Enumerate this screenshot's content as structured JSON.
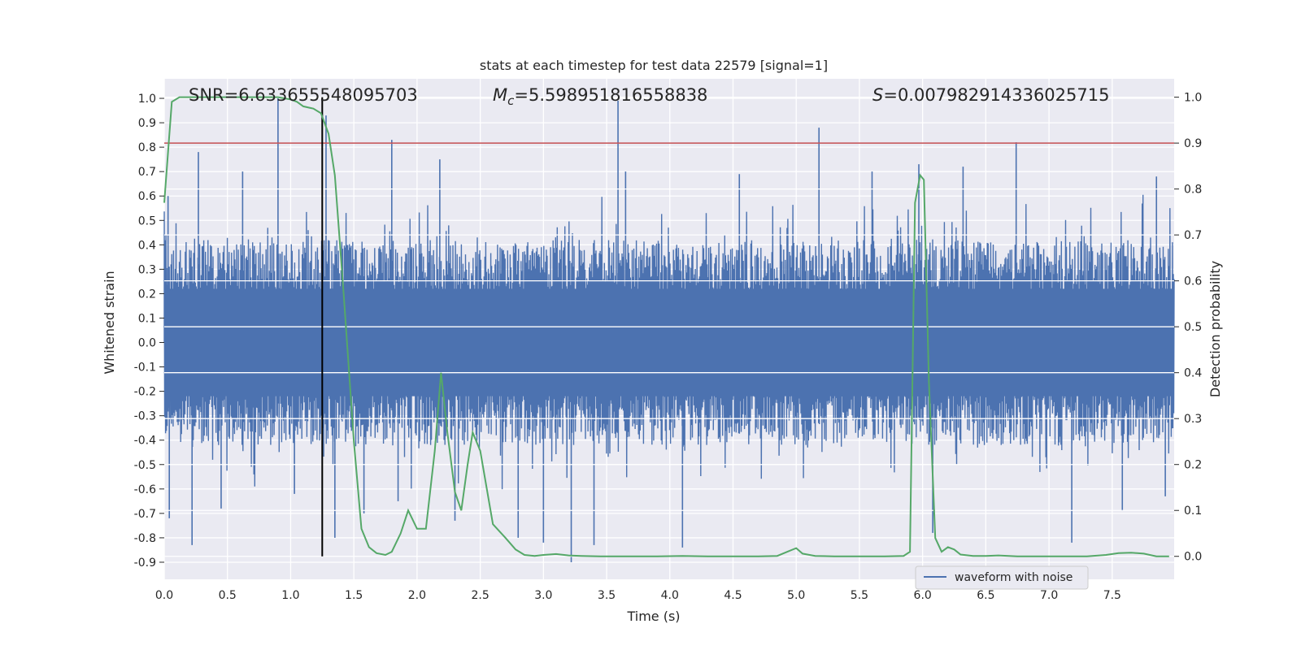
{
  "chart_data": {
    "type": "line",
    "title": "stats at each timestep for test data 22579 [signal=1]",
    "xlabel": "Time (s)",
    "ylabel": "Whitened strain",
    "y2label": "Detection probability",
    "xlim": [
      0.0,
      7.99
    ],
    "ylim": [
      -0.97,
      1.08
    ],
    "y2lim": [
      -0.05,
      1.04
    ],
    "xticks": [
      "0.0",
      "0.5",
      "1.0",
      "1.5",
      "2.0",
      "2.5",
      "3.0",
      "3.5",
      "4.0",
      "4.5",
      "5.0",
      "5.5",
      "6.0",
      "6.5",
      "7.0",
      "7.5"
    ],
    "yticks": [
      "1.0",
      "0.9",
      "0.8",
      "0.7",
      "0.6",
      "0.5",
      "0.4",
      "0.3",
      "0.2",
      "0.1",
      "0.0",
      "-0.1",
      "-0.2",
      "-0.3",
      "-0.4",
      "-0.5",
      "-0.6",
      "-0.7",
      "-0.8",
      "-0.9"
    ],
    "y2ticks": [
      "1.0",
      "0.9",
      "0.8",
      "0.7",
      "0.6",
      "0.5",
      "0.4",
      "0.3",
      "0.2",
      "0.1",
      "0.0"
    ],
    "annotations": {
      "snr": "SNR=6.633655548095703",
      "mc_symbol": "M",
      "mc_sub": "c",
      "mc_value": "=5.598951816558838",
      "s_symbol": "S",
      "s_value": "=0.007982914336025715"
    },
    "legend": {
      "entries": [
        "waveform with noise"
      ],
      "placement": "lower-right"
    },
    "threshold_line": {
      "axis": "right",
      "y": 0.9,
      "color": "#c44e52"
    },
    "vertical_marker": {
      "x": 1.25,
      "color": "#000000"
    },
    "strain_noise_band": {
      "typical_max": 0.42,
      "typical_min": -0.42
    },
    "strain_peaks": [
      {
        "x": 0.03,
        "y": 0.6
      },
      {
        "x": 0.04,
        "y": -0.72
      },
      {
        "x": 0.22,
        "y": -0.83
      },
      {
        "x": 0.27,
        "y": 0.78
      },
      {
        "x": 0.45,
        "y": -0.68
      },
      {
        "x": 0.62,
        "y": 0.7
      },
      {
        "x": 0.9,
        "y": 1.0
      },
      {
        "x": 1.03,
        "y": -0.62
      },
      {
        "x": 1.28,
        "y": 0.93
      },
      {
        "x": 1.35,
        "y": -0.8
      },
      {
        "x": 1.58,
        "y": -0.7
      },
      {
        "x": 1.8,
        "y": 0.83
      },
      {
        "x": 1.85,
        "y": -0.65
      },
      {
        "x": 2.18,
        "y": 0.75
      },
      {
        "x": 2.3,
        "y": -0.73
      },
      {
        "x": 2.8,
        "y": -0.8
      },
      {
        "x": 3.0,
        "y": -0.82
      },
      {
        "x": 3.22,
        "y": -0.9
      },
      {
        "x": 3.4,
        "y": -0.83
      },
      {
        "x": 3.59,
        "y": 0.99
      },
      {
        "x": 3.65,
        "y": 0.7
      },
      {
        "x": 4.1,
        "y": -0.84
      },
      {
        "x": 4.55,
        "y": 0.69
      },
      {
        "x": 5.18,
        "y": 0.88
      },
      {
        "x": 5.6,
        "y": 0.7
      },
      {
        "x": 5.97,
        "y": 0.73
      },
      {
        "x": 6.08,
        "y": -0.78
      },
      {
        "x": 6.32,
        "y": 0.72
      },
      {
        "x": 6.74,
        "y": 0.82
      },
      {
        "x": 7.18,
        "y": -0.82
      },
      {
        "x": 7.58,
        "y": -0.69
      },
      {
        "x": 7.85,
        "y": 0.68
      },
      {
        "x": 7.92,
        "y": -0.63
      }
    ],
    "series": [
      {
        "name": "waveform with noise",
        "axis": "left",
        "color": "#4c72b0",
        "kind": "noise"
      },
      {
        "axis": "right",
        "color": "#55a868",
        "x": [
          0.0,
          0.06,
          0.12,
          0.3,
          0.5,
          0.7,
          0.9,
          1.0,
          1.05,
          1.1,
          1.18,
          1.24,
          1.3,
          1.35,
          1.42,
          1.5,
          1.56,
          1.62,
          1.68,
          1.75,
          1.8,
          1.87,
          1.93,
          2.0,
          2.07,
          2.14,
          2.19,
          2.24,
          2.3,
          2.35,
          2.4,
          2.44,
          2.5,
          2.6,
          2.7,
          2.78,
          2.85,
          2.93,
          3.0,
          3.1,
          3.2,
          3.3,
          3.45,
          3.6,
          3.75,
          3.9,
          4.1,
          4.3,
          4.5,
          4.7,
          4.85,
          4.93,
          5.0,
          5.05,
          5.15,
          5.3,
          5.5,
          5.7,
          5.85,
          5.9,
          5.94,
          5.98,
          6.01,
          6.05,
          6.1,
          6.15,
          6.2,
          6.25,
          6.3,
          6.4,
          6.5,
          6.6,
          6.75,
          6.9,
          7.1,
          7.3,
          7.45,
          7.55,
          7.65,
          7.75,
          7.85,
          7.95
        ],
        "y": [
          0.77,
          0.99,
          1.0,
          1.0,
          1.0,
          1.0,
          1.0,
          0.995,
          0.99,
          0.98,
          0.975,
          0.965,
          0.92,
          0.83,
          0.57,
          0.25,
          0.06,
          0.02,
          0.007,
          0.003,
          0.01,
          0.05,
          0.1,
          0.06,
          0.06,
          0.23,
          0.4,
          0.27,
          0.14,
          0.1,
          0.2,
          0.27,
          0.23,
          0.07,
          0.04,
          0.015,
          0.003,
          0.001,
          0.003,
          0.005,
          0.002,
          0.001,
          0.0,
          0.0,
          0.0,
          0.0,
          0.001,
          0.0,
          0.0,
          0.0,
          0.001,
          0.01,
          0.018,
          0.006,
          0.001,
          0.0,
          0.0,
          0.0,
          0.001,
          0.01,
          0.77,
          0.83,
          0.82,
          0.38,
          0.04,
          0.01,
          0.02,
          0.015,
          0.004,
          0.001,
          0.001,
          0.002,
          0.0,
          0.0,
          0.0,
          0.0,
          0.003,
          0.007,
          0.008,
          0.006,
          0.0,
          0.0
        ]
      }
    ]
  }
}
